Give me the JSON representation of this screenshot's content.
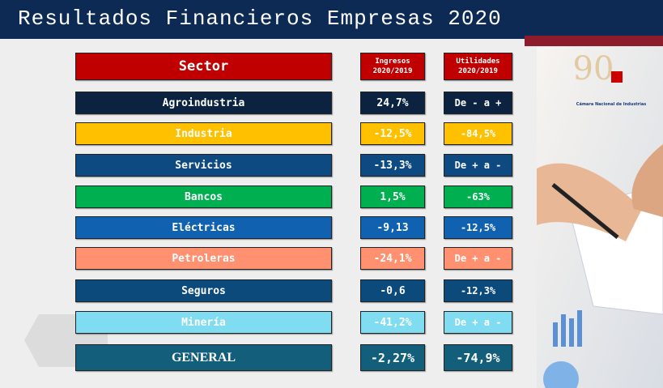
{
  "header": {
    "title": "Resultados Financieros Empresas 2020"
  },
  "table": {
    "columns": [
      "Sector",
      "Ingresos\n2020/2019",
      "Utilidades\n2020/2019"
    ],
    "rows": [
      {
        "sector": "Agroindustria",
        "ingresos": "24,7%",
        "utilidades": "De -  a +",
        "color": "#0b2340"
      },
      {
        "sector": "Industria",
        "ingresos": "-12,5%",
        "utilidades": "-84,5%",
        "color": "#ffc000"
      },
      {
        "sector": "Servicios",
        "ingresos": "-13,3%",
        "utilidades": "De + a -",
        "color": "#0d4a82"
      },
      {
        "sector": "Bancos",
        "ingresos": "1,5%",
        "utilidades": "-63%",
        "color": "#00b050"
      },
      {
        "sector": "Eléctricas",
        "ingresos": "-9,13",
        "utilidades": "-12,5%",
        "color": "#1061b0"
      },
      {
        "sector": "Petroleras",
        "ingresos": "-24,1%",
        "utilidades": "De + a -",
        "color": "#ff9070"
      },
      {
        "sector": "Seguros",
        "ingresos": "-0,6",
        "utilidades": "-12,3%",
        "color": "#0d4a7c"
      },
      {
        "sector": "Minería",
        "ingresos": "-41,2%",
        "utilidades": "De + a -",
        "color": "#80dcf0"
      },
      {
        "sector": "GENERAL",
        "ingresos": "-2,27%",
        "utilidades": "-74,9%",
        "color": "#135e7a"
      }
    ]
  },
  "logo": {
    "number": "90",
    "caption": "Cámara Nacional de Industrias"
  }
}
